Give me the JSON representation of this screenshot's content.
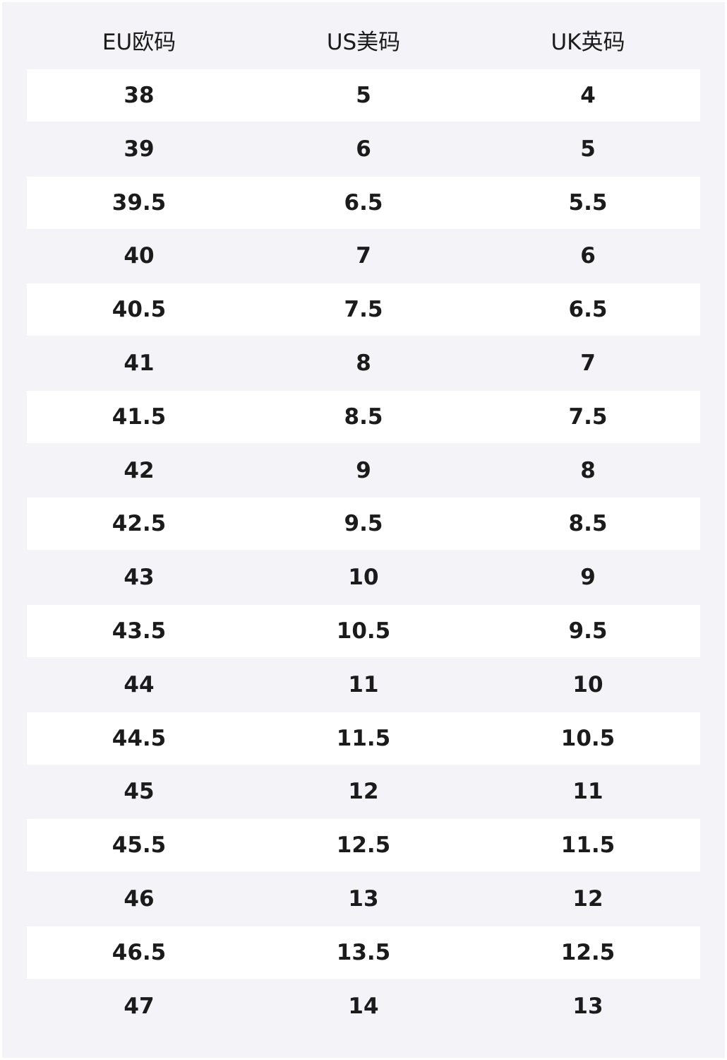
{
  "table": {
    "header": [
      "EU欧码",
      "US美码",
      "UK英码"
    ],
    "rows": [
      [
        "38",
        "5",
        "4"
      ],
      [
        "39",
        "6",
        "5"
      ],
      [
        "39.5",
        "6.5",
        "5.5"
      ],
      [
        "40",
        "7",
        "6"
      ],
      [
        "40.5",
        "7.5",
        "6.5"
      ],
      [
        "41",
        "8",
        "7"
      ],
      [
        "41.5",
        "8.5",
        "7.5"
      ],
      [
        "42",
        "9",
        "8"
      ],
      [
        "42.5",
        "9.5",
        "8.5"
      ],
      [
        "43",
        "10",
        "9"
      ],
      [
        "43.5",
        "10.5",
        "9.5"
      ],
      [
        "44",
        "11",
        "10"
      ],
      [
        "44.5",
        "11.5",
        "10.5"
      ],
      [
        "45",
        "12",
        "11"
      ],
      [
        "45.5",
        "12.5",
        "11.5"
      ],
      [
        "46",
        "13",
        "12"
      ],
      [
        "46.5",
        "13.5",
        "12.5"
      ],
      [
        "47",
        "14",
        "13"
      ]
    ]
  }
}
